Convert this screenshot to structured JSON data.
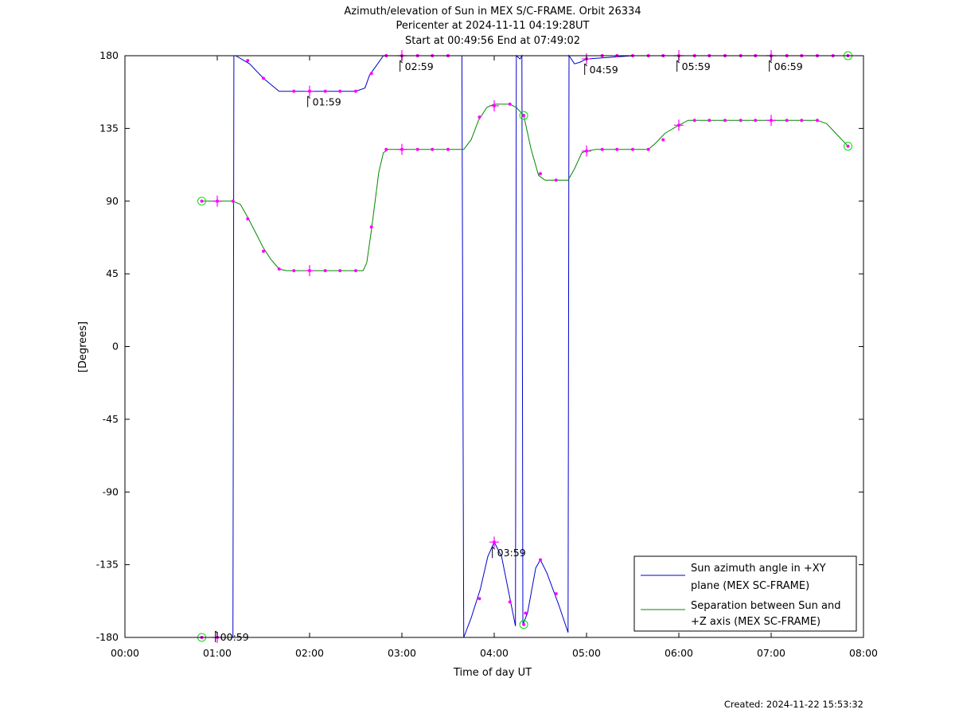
{
  "chart_data": {
    "type": "line",
    "title": [
      "Azimuth/elevation of Sun in MEX S/C-FRAME.  Orbit 26334",
      "Pericenter at 2024-11-11 04:19:28UT",
      "Start at 00:49:56 End at 07:49:02"
    ],
    "xlabel": "Time of day UT",
    "ylabel": "[Degrees]",
    "x_unit": "hours of day",
    "xlim": [
      0,
      8
    ],
    "ylim": [
      -180,
      180
    ],
    "x_ticks": [
      0,
      1,
      2,
      3,
      4,
      5,
      6,
      7,
      8
    ],
    "x_tick_labels": [
      "00:00",
      "01:00",
      "02:00",
      "03:00",
      "04:00",
      "05:00",
      "06:00",
      "07:00",
      "08:00"
    ],
    "y_ticks": [
      180,
      135,
      90,
      45,
      0,
      -45,
      -90,
      -135,
      -180
    ],
    "y_tick_labels": [
      "180",
      "135",
      "90",
      "45",
      "0",
      "-45",
      "-90",
      "-135",
      "-180"
    ],
    "grid": false,
    "legend_position": "bottom-right",
    "series": [
      {
        "name": "Sun azimuth angle in +XY plane (MEX SC-FRAME)",
        "legend_lines": [
          "Sun azimuth angle in +XY",
          "plane (MEX SC-FRAME)"
        ],
        "color": "#0000cc",
        "points": [
          [
            0.832,
            -180
          ],
          [
            1.1,
            -180
          ],
          [
            1.17,
            -180
          ],
          [
            1.18,
            180
          ],
          [
            1.2,
            180
          ],
          [
            1.35,
            175
          ],
          [
            1.5,
            166
          ],
          [
            1.67,
            158
          ],
          [
            2.0,
            158
          ],
          [
            2.5,
            158
          ],
          [
            2.6,
            160
          ],
          [
            2.65,
            168
          ],
          [
            2.8,
            180
          ],
          [
            3.65,
            180
          ],
          [
            3.67,
            -180
          ],
          [
            3.75,
            -168
          ],
          [
            3.85,
            -150
          ],
          [
            3.93,
            -130
          ],
          [
            4.0,
            -121
          ],
          [
            4.08,
            -130
          ],
          [
            4.15,
            -150
          ],
          [
            4.23,
            -173
          ],
          [
            4.24,
            180
          ],
          [
            4.28,
            178
          ],
          [
            4.3,
            180
          ],
          [
            4.31,
            -172
          ],
          [
            4.36,
            -165
          ],
          [
            4.45,
            -137
          ],
          [
            4.5,
            -132
          ],
          [
            4.57,
            -140
          ],
          [
            4.7,
            -160
          ],
          [
            4.8,
            -177
          ],
          [
            4.81,
            180
          ],
          [
            4.87,
            175
          ],
          [
            4.93,
            176
          ],
          [
            5.0,
            178
          ],
          [
            5.5,
            180
          ],
          [
            7.832,
            180
          ]
        ],
        "markers": [
          [
            1.0,
            -180
          ],
          [
            1.33,
            177
          ],
          [
            1.5,
            166
          ],
          [
            1.83,
            158
          ],
          [
            2.0,
            158
          ],
          [
            2.17,
            158
          ],
          [
            2.33,
            158
          ],
          [
            2.5,
            158
          ],
          [
            2.67,
            169
          ],
          [
            2.83,
            180
          ],
          [
            3.0,
            180
          ],
          [
            3.17,
            180
          ],
          [
            3.33,
            180
          ],
          [
            3.5,
            180
          ],
          [
            3.84,
            -156
          ],
          [
            4.0,
            -121
          ],
          [
            4.17,
            -158
          ],
          [
            4.34,
            -165
          ],
          [
            4.5,
            -132
          ],
          [
            4.67,
            -153
          ],
          [
            5.0,
            178
          ],
          [
            5.17,
            180
          ],
          [
            5.33,
            180
          ],
          [
            5.5,
            180
          ],
          [
            5.67,
            180
          ],
          [
            5.83,
            180
          ],
          [
            6.0,
            180
          ],
          [
            6.17,
            180
          ],
          [
            6.33,
            180
          ],
          [
            6.5,
            180
          ],
          [
            6.67,
            180
          ],
          [
            6.83,
            180
          ],
          [
            7.0,
            180
          ],
          [
            7.17,
            180
          ],
          [
            7.33,
            180
          ],
          [
            7.5,
            180
          ],
          [
            7.67,
            180
          ]
        ]
      },
      {
        "name": "Separation between Sun and +Z axis (MEX SC-FRAME)",
        "legend_lines": [
          "Separation between Sun and",
          "+Z axis (MEX SC-FRAME)"
        ],
        "color": "#008800",
        "points": [
          [
            0.832,
            90
          ],
          [
            1.17,
            90
          ],
          [
            1.25,
            88
          ],
          [
            1.33,
            80
          ],
          [
            1.42,
            70
          ],
          [
            1.5,
            61
          ],
          [
            1.58,
            54
          ],
          [
            1.67,
            48
          ],
          [
            1.75,
            47
          ],
          [
            2.0,
            47
          ],
          [
            2.58,
            47
          ],
          [
            2.62,
            52
          ],
          [
            2.67,
            72
          ],
          [
            2.75,
            108
          ],
          [
            2.8,
            120
          ],
          [
            2.85,
            122
          ],
          [
            3.67,
            122
          ],
          [
            3.75,
            128
          ],
          [
            3.83,
            140
          ],
          [
            3.92,
            148
          ],
          [
            4.0,
            150
          ],
          [
            4.17,
            150
          ],
          [
            4.24,
            148
          ],
          [
            4.32,
            143
          ],
          [
            4.4,
            122
          ],
          [
            4.48,
            106
          ],
          [
            4.55,
            103
          ],
          [
            4.8,
            103
          ],
          [
            4.87,
            110
          ],
          [
            4.95,
            120
          ],
          [
            5.0,
            121
          ],
          [
            5.1,
            122
          ],
          [
            5.67,
            122
          ],
          [
            5.75,
            126
          ],
          [
            5.85,
            132
          ],
          [
            6.0,
            137
          ],
          [
            6.1,
            140
          ],
          [
            7.0,
            140
          ],
          [
            7.5,
            140
          ],
          [
            7.6,
            138
          ],
          [
            7.7,
            132
          ],
          [
            7.832,
            124
          ]
        ],
        "markers": [
          [
            1.0,
            90
          ],
          [
            1.17,
            90
          ],
          [
            1.33,
            79
          ],
          [
            1.5,
            59
          ],
          [
            1.67,
            48
          ],
          [
            1.83,
            47
          ],
          [
            2.0,
            47
          ],
          [
            2.17,
            47
          ],
          [
            2.33,
            47
          ],
          [
            2.5,
            47
          ],
          [
            2.67,
            74
          ],
          [
            2.83,
            122
          ],
          [
            3.0,
            122
          ],
          [
            3.17,
            122
          ],
          [
            3.33,
            122
          ],
          [
            3.5,
            122
          ],
          [
            3.84,
            142
          ],
          [
            4.0,
            149
          ],
          [
            4.17,
            150
          ],
          [
            4.5,
            107
          ],
          [
            4.67,
            103
          ],
          [
            5.0,
            121
          ],
          [
            5.17,
            122
          ],
          [
            5.33,
            122
          ],
          [
            5.5,
            122
          ],
          [
            5.67,
            122
          ],
          [
            5.83,
            128
          ],
          [
            6.0,
            137
          ],
          [
            6.17,
            140
          ],
          [
            6.33,
            140
          ],
          [
            6.5,
            140
          ],
          [
            6.67,
            140
          ],
          [
            6.83,
            140
          ],
          [
            7.0,
            140
          ],
          [
            7.17,
            140
          ],
          [
            7.33,
            140
          ],
          [
            7.5,
            140
          ]
        ]
      }
    ],
    "hour_markers": [
      [
        1.0,
        -180
      ],
      [
        2.0,
        158
      ],
      [
        3.0,
        180
      ],
      [
        4.0,
        -121
      ],
      [
        5.0,
        178
      ],
      [
        6.0,
        180
      ],
      [
        7.0,
        180
      ],
      [
        1.0,
        90
      ],
      [
        2.0,
        47
      ],
      [
        3.0,
        122
      ],
      [
        4.0,
        149
      ],
      [
        5.0,
        121
      ],
      [
        6.0,
        137
      ],
      [
        7.0,
        140
      ]
    ],
    "circle_markers": [
      [
        0.832,
        -180
      ],
      [
        0.832,
        90
      ],
      [
        4.32,
        143
      ],
      [
        4.32,
        -172
      ],
      [
        7.832,
        180
      ],
      [
        7.832,
        124
      ]
    ],
    "annotations": [
      {
        "text": "00:59",
        "x": 0.98,
        "y": -180,
        "position": "below-right"
      },
      {
        "text": "01:59",
        "x": 1.98,
        "y": 158,
        "position": "below-right"
      },
      {
        "text": "02:59",
        "x": 2.98,
        "y": 180,
        "position": "below-right"
      },
      {
        "text": "03:59",
        "x": 3.98,
        "y": -121,
        "position": "below-right"
      },
      {
        "text": "04:59",
        "x": 4.98,
        "y": 178,
        "position": "below-right"
      },
      {
        "text": "05:59",
        "x": 5.98,
        "y": 180,
        "position": "below-right"
      },
      {
        "text": "06:59",
        "x": 6.98,
        "y": 180,
        "position": "below-right"
      }
    ]
  },
  "footer": {
    "created": "Created: 2024-11-22 15:53:32"
  },
  "colors": {
    "marker": "#ff00ff",
    "circle": "#00dd00",
    "axis": "#000000"
  }
}
